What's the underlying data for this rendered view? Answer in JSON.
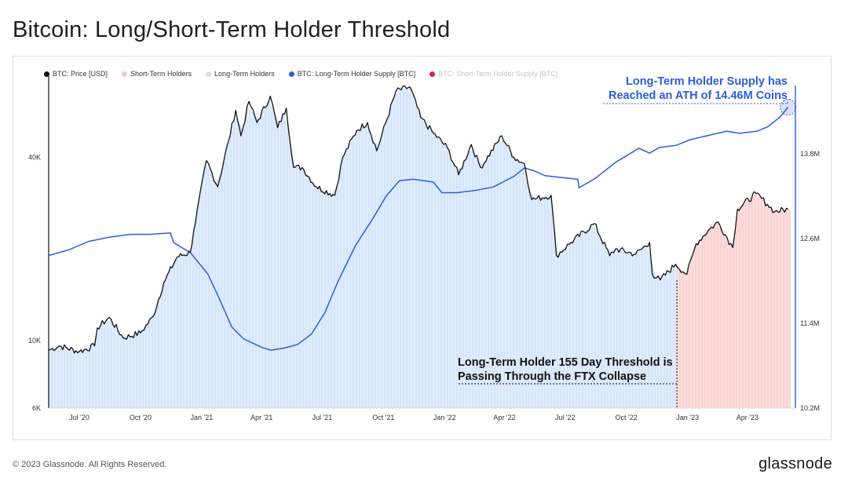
{
  "title": "Bitcoin: Long/Short-Term Holder Threshold",
  "footer": "© 2023 Glassnode. All Rights Reserved.",
  "brand": "glassnode",
  "watermark": "glassnode",
  "colors": {
    "price": "#111111",
    "lth_fill": "#d6e6fb",
    "sth_fill": "#fbd3d3",
    "lth_supply": "#2b5ce6",
    "sth_supply": "#e8175d",
    "annotation_blue": "#2b5ce6"
  },
  "legend": [
    {
      "label": "BTC: Price [USD]",
      "color": "#111111",
      "muted": false
    },
    {
      "label": "Short-Term Holders",
      "color": "#f7c8c8",
      "muted": false
    },
    {
      "label": "Long-Term Holders",
      "color": "#cfe0f8",
      "muted": false
    },
    {
      "label": "BTC: Long-Term Holder Supply [BTC]",
      "color": "#2b5ce6",
      "muted": false
    },
    {
      "label": "BTC: Short-Term Holder Supply [BTC]",
      "color": "#e8175d",
      "muted": true
    }
  ],
  "annotations": {
    "lth_ath_line1": "Long-Term Holder Supply has",
    "lth_ath_line2": "Reached an ATH of 14.46M Coins",
    "ftx_line1": "Long-Term Holder 155 Day Threshold is",
    "ftx_line2": "Passing Through the FTX Collapse"
  },
  "chart_data": {
    "type": "line",
    "title": "Bitcoin: Long/Short-Term Holder Threshold",
    "x_ticks": [
      "Jul '20",
      "Oct '20",
      "Jan '21",
      "Apr '21",
      "Jul '21",
      "Oct '21",
      "Jan '22",
      "Apr '22",
      "Jul '22",
      "Oct '22",
      "Jan '23",
      "Apr '23"
    ],
    "x_range": [
      "2020-05-16",
      "2023-06-05"
    ],
    "y_left": {
      "scale": "log",
      "range": [
        6000,
        70000
      ],
      "ticks": [
        "6K",
        "10K",
        "40K"
      ]
    },
    "y_right": {
      "scale": "linear",
      "range": [
        10200000,
        14800000
      ],
      "ticks": [
        "10.2M",
        "11.4M",
        "12.6M",
        "13.8M"
      ]
    },
    "shading": {
      "long_term_holders": {
        "from": "2020-05-16",
        "to": "2022-12-16"
      },
      "short_term_holders": {
        "from": "2022-12-16",
        "to": "2023-06-05"
      }
    },
    "series": [
      {
        "name": "BTC: Price [USD]",
        "axis": "left",
        "points": [
          [
            "2020-05-16",
            9300
          ],
          [
            "2020-06-01",
            9600
          ],
          [
            "2020-07-01",
            9200
          ],
          [
            "2020-07-24",
            9600
          ],
          [
            "2020-07-28",
            11000
          ],
          [
            "2020-08-15",
            11900
          ],
          [
            "2020-09-05",
            10200
          ],
          [
            "2020-10-01",
            10600
          ],
          [
            "2020-10-20",
            12000
          ],
          [
            "2020-11-05",
            15500
          ],
          [
            "2020-11-25",
            18800
          ],
          [
            "2020-12-15",
            19500
          ],
          [
            "2020-12-20",
            23000
          ],
          [
            "2021-01-08",
            39000
          ],
          [
            "2021-01-25",
            32000
          ],
          [
            "2021-02-10",
            45000
          ],
          [
            "2021-02-21",
            57000
          ],
          [
            "2021-03-01",
            47000
          ],
          [
            "2021-03-13",
            61000
          ],
          [
            "2021-03-25",
            52000
          ],
          [
            "2021-04-14",
            63500
          ],
          [
            "2021-04-25",
            50000
          ],
          [
            "2021-05-08",
            58000
          ],
          [
            "2021-05-19",
            37000
          ],
          [
            "2021-06-01",
            37000
          ],
          [
            "2021-06-22",
            32000
          ],
          [
            "2021-07-20",
            30000
          ],
          [
            "2021-08-01",
            40000
          ],
          [
            "2021-08-22",
            49000
          ],
          [
            "2021-09-07",
            52000
          ],
          [
            "2021-09-21",
            42000
          ],
          [
            "2021-10-20",
            66000
          ],
          [
            "2021-11-10",
            68000
          ],
          [
            "2021-11-26",
            54000
          ],
          [
            "2021-12-15",
            48000
          ],
          [
            "2022-01-05",
            43000
          ],
          [
            "2022-01-22",
            35000
          ],
          [
            "2022-02-10",
            44000
          ],
          [
            "2022-02-24",
            37000
          ],
          [
            "2022-03-28",
            47000
          ],
          [
            "2022-04-15",
            40000
          ],
          [
            "2022-05-01",
            38000
          ],
          [
            "2022-05-12",
            29000
          ],
          [
            "2022-06-10",
            30000
          ],
          [
            "2022-06-18",
            19000
          ],
          [
            "2022-07-10",
            21000
          ],
          [
            "2022-08-14",
            24200
          ],
          [
            "2022-09-06",
            19000
          ],
          [
            "2022-09-15",
            20000
          ],
          [
            "2022-10-15",
            19200
          ],
          [
            "2022-11-05",
            21000
          ],
          [
            "2022-11-09",
            16500
          ],
          [
            "2022-11-21",
            15800
          ],
          [
            "2022-12-14",
            17800
          ],
          [
            "2022-12-31",
            16500
          ],
          [
            "2023-01-14",
            20800
          ],
          [
            "2023-02-01",
            23000
          ],
          [
            "2023-02-16",
            24500
          ],
          [
            "2023-03-10",
            20200
          ],
          [
            "2023-03-17",
            27000
          ],
          [
            "2023-04-14",
            30400
          ],
          [
            "2023-05-01",
            28000
          ],
          [
            "2023-05-12",
            26500
          ],
          [
            "2023-06-01",
            27000
          ]
        ]
      },
      {
        "name": "BTC: Long-Term Holder Supply [BTC]",
        "axis": "right",
        "points": [
          [
            "2020-05-16",
            12360000
          ],
          [
            "2020-06-15",
            12440000
          ],
          [
            "2020-07-15",
            12560000
          ],
          [
            "2020-08-15",
            12620000
          ],
          [
            "2020-09-15",
            12660000
          ],
          [
            "2020-10-15",
            12660000
          ],
          [
            "2020-11-15",
            12680000
          ],
          [
            "2020-11-20",
            12540000
          ],
          [
            "2020-12-15",
            12400000
          ],
          [
            "2021-01-10",
            12100000
          ],
          [
            "2021-01-25",
            11800000
          ],
          [
            "2021-02-15",
            11350000
          ],
          [
            "2021-03-05",
            11180000
          ],
          [
            "2021-04-01",
            11060000
          ],
          [
            "2021-04-15",
            11020000
          ],
          [
            "2021-05-05",
            11050000
          ],
          [
            "2021-05-25",
            11100000
          ],
          [
            "2021-06-15",
            11250000
          ],
          [
            "2021-07-05",
            11550000
          ],
          [
            "2021-07-25",
            12000000
          ],
          [
            "2021-08-20",
            12500000
          ],
          [
            "2021-09-15",
            12880000
          ],
          [
            "2021-10-05",
            13200000
          ],
          [
            "2021-10-25",
            13420000
          ],
          [
            "2021-11-15",
            13440000
          ],
          [
            "2021-12-15",
            13400000
          ],
          [
            "2021-12-28",
            13250000
          ],
          [
            "2022-01-20",
            13250000
          ],
          [
            "2022-02-15",
            13280000
          ],
          [
            "2022-03-15",
            13330000
          ],
          [
            "2022-04-15",
            13480000
          ],
          [
            "2022-05-01",
            13600000
          ],
          [
            "2022-05-15",
            13560000
          ],
          [
            "2022-06-01",
            13490000
          ],
          [
            "2022-07-01",
            13460000
          ],
          [
            "2022-07-20",
            13440000
          ],
          [
            "2022-07-22",
            13320000
          ],
          [
            "2022-08-15",
            13450000
          ],
          [
            "2022-09-15",
            13680000
          ],
          [
            "2022-10-20",
            13880000
          ],
          [
            "2022-11-05",
            13810000
          ],
          [
            "2022-11-20",
            13890000
          ],
          [
            "2022-12-15",
            13920000
          ],
          [
            "2023-01-05",
            14000000
          ],
          [
            "2023-02-01",
            14060000
          ],
          [
            "2023-03-01",
            14120000
          ],
          [
            "2023-03-20",
            14090000
          ],
          [
            "2023-04-15",
            14120000
          ],
          [
            "2023-05-01",
            14180000
          ],
          [
            "2023-05-20",
            14320000
          ],
          [
            "2023-06-01",
            14460000
          ]
        ]
      }
    ]
  }
}
